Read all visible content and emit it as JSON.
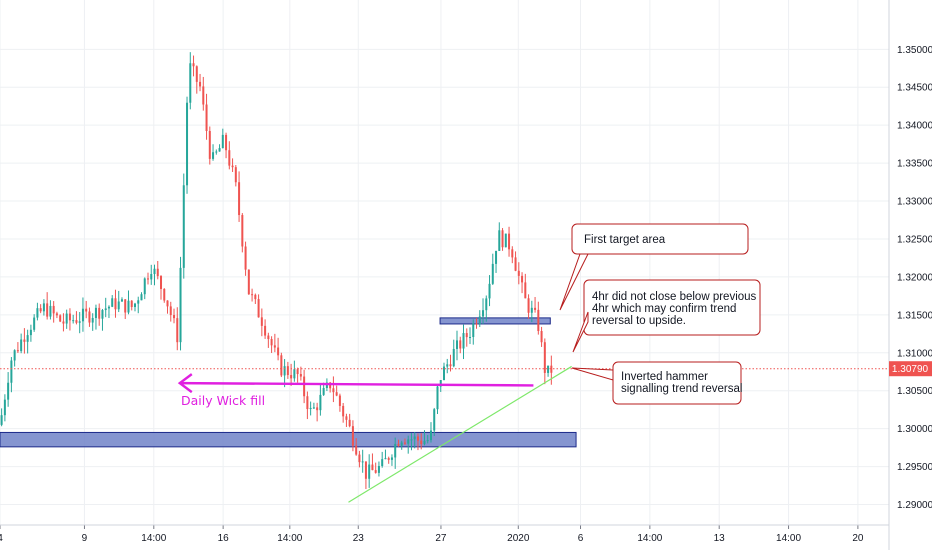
{
  "chart_data": {
    "type": "candlestick",
    "title": "",
    "xlabel": "",
    "ylabel": "",
    "ylim": [
      1.2873,
      1.3565
    ],
    "grid": true,
    "y_ticks": [
      "1.35000",
      "1.34500",
      "1.34000",
      "1.33500",
      "1.33000",
      "1.32500",
      "1.32000",
      "1.31500",
      "1.31000",
      "1.30500",
      "1.30000",
      "1.29500",
      "1.29000"
    ],
    "x_ticks": [
      "4",
      "9",
      "14:00",
      "16",
      "14:00",
      "23",
      "27",
      "2020",
      "6",
      "14:00",
      "13",
      "14:00",
      "20"
    ],
    "x_tick_frac": [
      0.0,
      0.095,
      0.173,
      0.251,
      0.326,
      0.403,
      0.496,
      0.583,
      0.653,
      0.731,
      0.809,
      0.887,
      0.965
    ],
    "last_price_label": "1.30790",
    "last_price": 1.3079,
    "colors": {
      "up": "#26a69a",
      "down": "#ef5350",
      "price_line": "#ef5350",
      "zone_fill": "#7082c8",
      "zone_stroke": "#1c2a8a",
      "trendline": "#7ee86a",
      "wick_fill": "#e020e0",
      "note_border": "#b71c1c",
      "grid": "#eef0f3"
    },
    "anchors": [
      {
        "f": 0.0,
        "p": 1.3005
      },
      {
        "f": 0.012,
        "p": 1.309
      },
      {
        "f": 0.03,
        "p": 1.313
      },
      {
        "f": 0.05,
        "p": 1.316
      },
      {
        "f": 0.07,
        "p": 1.314
      },
      {
        "f": 0.1,
        "p": 1.315
      },
      {
        "f": 0.13,
        "p": 1.3165
      },
      {
        "f": 0.15,
        "p": 1.316
      },
      {
        "f": 0.17,
        "p": 1.3215
      },
      {
        "f": 0.186,
        "p": 1.3175
      },
      {
        "f": 0.2,
        "p": 1.312
      },
      {
        "f": 0.212,
        "p": 1.348
      },
      {
        "f": 0.225,
        "p": 1.345
      },
      {
        "f": 0.238,
        "p": 1.335
      },
      {
        "f": 0.252,
        "p": 1.338
      },
      {
        "f": 0.265,
        "p": 1.332
      },
      {
        "f": 0.28,
        "p": 1.318
      },
      {
        "f": 0.296,
        "p": 1.314
      },
      {
        "f": 0.315,
        "p": 1.308
      },
      {
        "f": 0.335,
        "p": 1.307
      },
      {
        "f": 0.35,
        "p": 1.302
      },
      {
        "f": 0.372,
        "p": 1.306
      },
      {
        "f": 0.395,
        "p": 1.2995
      },
      {
        "f": 0.412,
        "p": 1.294
      },
      {
        "f": 0.43,
        "p": 1.295
      },
      {
        "f": 0.45,
        "p": 1.299
      },
      {
        "f": 0.47,
        "p": 1.2985
      },
      {
        "f": 0.484,
        "p": 1.2985
      },
      {
        "f": 0.494,
        "p": 1.3065
      },
      {
        "f": 0.51,
        "p": 1.31
      },
      {
        "f": 0.53,
        "p": 1.313
      },
      {
        "f": 0.548,
        "p": 1.318
      },
      {
        "f": 0.56,
        "p": 1.3255
      },
      {
        "f": 0.575,
        "p": 1.324
      },
      {
        "f": 0.59,
        "p": 1.317
      },
      {
        "f": 0.605,
        "p": 1.314
      },
      {
        "f": 0.614,
        "p": 1.307
      },
      {
        "f": 0.622,
        "p": 1.308
      }
    ],
    "zones": [
      {
        "name": "demand-zone",
        "p_top": 1.2995,
        "p_bot": 1.2976,
        "f_start": 0.0,
        "f_end": 0.648
      },
      {
        "name": "first-target-zone",
        "p_top": 1.3146,
        "p_bot": 1.3138,
        "f_start": 0.495,
        "f_end": 0.619
      }
    ],
    "trendline": {
      "f0": 0.392,
      "p0": 1.2903,
      "f1": 0.643,
      "p1": 1.3082
    },
    "wick_fill_line": {
      "f0": 0.2,
      "p0": 1.306,
      "f1": 0.6,
      "p1": 1.3057
    }
  },
  "annotations": {
    "daily_wick_fill": "Daily Wick fill",
    "first_target": "First target area",
    "four_hr_lines": [
      "4hr did not close below previous",
      "4hr which may confirm trend",
      "reversal to upside."
    ],
    "inverted_hammer_lines": [
      "Inverted hammer",
      "signalling trend reversal"
    ]
  }
}
